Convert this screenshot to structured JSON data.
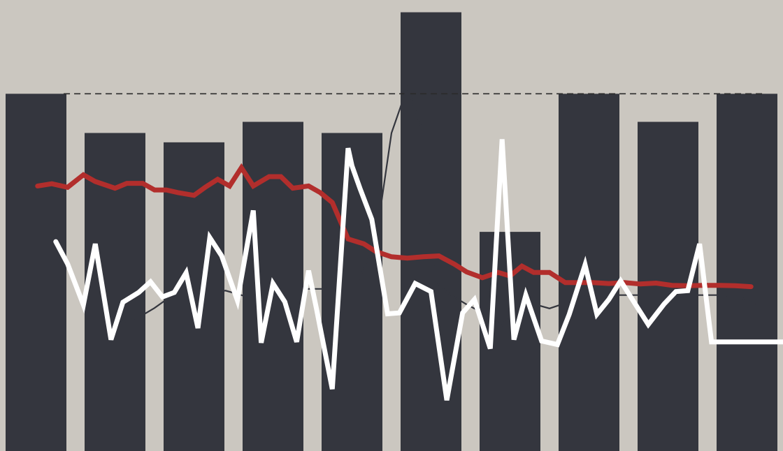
{
  "chart_data": {
    "type": "bar",
    "colors": {
      "background": "#cbc7c0",
      "bars": "#34363e",
      "red_line": "#b22e2c",
      "white_line": "#ffffff",
      "thin_line": "#34363e",
      "reference_line": "#2b2b2b"
    },
    "ylim": [
      0,
      100
    ],
    "grid": false,
    "bars": [
      80.2,
      71.4,
      69.3,
      73.9,
      71.4,
      98.5,
      49.2,
      80.2,
      73.9,
      80.2
    ],
    "reference_value": 80.2,
    "series": [
      {
        "style": "thick-red",
        "x": [
          0.02,
          0.2,
          0.4,
          0.6,
          0.75,
          1.0,
          1.15,
          1.35,
          1.5,
          1.65,
          1.8,
          2.0,
          2.15,
          2.3,
          2.45,
          2.6,
          2.75,
          2.95,
          3.1,
          3.25,
          3.45,
          3.6,
          3.75,
          3.95,
          4.15,
          4.3,
          4.5,
          4.7,
          4.9,
          5.1,
          5.3,
          5.45,
          5.65,
          5.85,
          6.0,
          6.15,
          6.3,
          6.5,
          6.7,
          6.9,
          7.05,
          7.25,
          7.45,
          7.65,
          7.85,
          8.05,
          8.25,
          8.45,
          8.65,
          8.85,
          9.05
        ],
        "y": [
          59.5,
          60.0,
          59.2,
          62.0,
          60.5,
          59.0,
          60.1,
          60.1,
          58.6,
          58.6,
          58.0,
          57.4,
          59.3,
          61.0,
          59.5,
          63.6,
          59.5,
          61.6,
          61.6,
          59.0,
          59.5,
          58.0,
          55.8,
          47.6,
          46.5,
          44.8,
          43.6,
          43.3,
          43.6,
          43.8,
          41.9,
          40.2,
          38.9,
          40.1,
          39.3,
          41.5,
          40.1,
          40.1,
          37.8,
          37.8,
          37.8,
          37.6,
          37.8,
          37.5,
          37.7,
          37.2,
          37.1,
          37.2,
          37.2,
          37.1,
          36.9
        ]
      },
      {
        "style": "thick-white",
        "x": [
          0.25,
          0.4,
          0.6,
          0.75,
          0.95,
          1.1,
          1.3,
          1.45,
          1.6,
          1.75,
          1.9,
          2.05,
          2.2,
          2.35,
          2.55,
          2.75,
          2.85,
          3.0,
          3.15,
          3.3,
          3.45,
          3.55,
          3.75,
          3.95,
          4.0,
          4.1,
          4.25,
          4.45,
          4.6,
          4.8,
          5.0,
          5.2,
          5.4,
          5.55,
          5.75,
          5.9,
          6.05,
          6.2,
          6.4,
          6.6,
          6.75,
          6.95,
          7.1,
          7.25,
          7.4,
          7.55,
          7.75,
          7.95,
          8.1,
          8.25,
          8.4,
          8.55,
          8.75,
          8.9,
          9.05,
          9.25,
          9.45,
          9.6,
          9.8
        ],
        "y": [
          47.0,
          42.0,
          32.8,
          46.5,
          25.0,
          33.4,
          35.6,
          38.0,
          34.6,
          35.6,
          40.0,
          27.6,
          47.9,
          43.8,
          33.8,
          54.0,
          24.3,
          37.6,
          33.5,
          24.5,
          40.5,
          32.0,
          13.9,
          68.0,
          64.0,
          59.0,
          52.0,
          30.8,
          31.0,
          37.6,
          35.8,
          11.4,
          31.0,
          34.0,
          23.0,
          70.0,
          25.0,
          35.0,
          24.7,
          23.9,
          30.7,
          41.8,
          30.7,
          34.0,
          38.2,
          34.0,
          28.4,
          33.0,
          35.8,
          36.0,
          46.5,
          24.5,
          24.5,
          24.5,
          24.5,
          24.5,
          24.5,
          24.5,
          24.5
        ]
      },
      {
        "style": "thin-dark",
        "x": [
          0.9,
          1.1,
          1.3,
          1.5,
          1.8,
          2.1,
          2.4,
          2.7,
          2.95,
          3.2,
          3.45,
          3.65,
          3.85,
          4.05,
          4.3,
          4.5,
          4.7,
          4.9,
          5.05,
          5.2,
          5.45,
          5.7,
          5.9,
          6.1,
          6.3,
          6.5,
          6.75,
          7.0,
          7.2,
          7.45,
          7.7,
          7.95,
          8.2,
          8.45,
          8.7,
          8.95,
          9.1
        ],
        "y": [
          33.0,
          28.9,
          30.0,
          32.1,
          35.9,
          35.5,
          36.0,
          34.5,
          36.4,
          36.0,
          36.4,
          36.4,
          37.6,
          37.0,
          47.0,
          71.4,
          81.6,
          71.5,
          38.3,
          35.6,
          32.9,
          30.6,
          28.2,
          33.8,
          33.0,
          32.0,
          33.5,
          35.0,
          35.0,
          35.0,
          35.0,
          35.0,
          35.0,
          35.0,
          35.0,
          34.3,
          33.0
        ]
      }
    ]
  }
}
